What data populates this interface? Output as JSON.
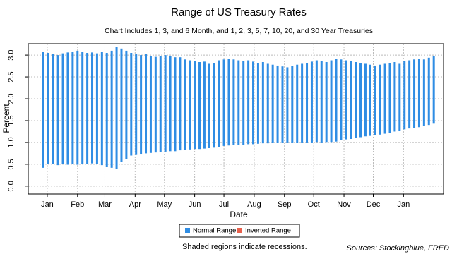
{
  "chart_data": {
    "type": "range-bar",
    "title": "Range of US Treasury Rates",
    "subtitle": "Chart Includes 1, 3, and 6 Month, and 1, 2, 3, 5, 7, 10, 20, and 30 Year Treasuries",
    "xlabel": "Date",
    "ylabel": "Percent",
    "x": [
      -4,
      1,
      6,
      11,
      16,
      21,
      26,
      31,
      36,
      41,
      46,
      51,
      56,
      61,
      66,
      71,
      76,
      81,
      86,
      91,
      96,
      101,
      106,
      111,
      116,
      121,
      126,
      131,
      136,
      141,
      146,
      151,
      156,
      161,
      166,
      171,
      176,
      181,
      186,
      191,
      196,
      201,
      206,
      211,
      216,
      221,
      226,
      231,
      236,
      241,
      246,
      251,
      256,
      261,
      266,
      271,
      276,
      281,
      286,
      291,
      296,
      301,
      306,
      311,
      316,
      321,
      326,
      331,
      336,
      341,
      346,
      351,
      356,
      361,
      366,
      371,
      376,
      381,
      386,
      391,
      396
    ],
    "series": [
      {
        "name": "Normal Range",
        "color": "#2f8de4",
        "low": [
          0.42,
          0.5,
          0.5,
          0.48,
          0.5,
          0.49,
          0.5,
          0.49,
          0.51,
          0.5,
          0.52,
          0.5,
          0.48,
          0.45,
          0.42,
          0.4,
          0.55,
          0.62,
          0.7,
          0.73,
          0.74,
          0.75,
          0.76,
          0.77,
          0.78,
          0.79,
          0.8,
          0.8,
          0.82,
          0.83,
          0.84,
          0.85,
          0.85,
          0.86,
          0.87,
          0.88,
          0.89,
          0.92,
          0.93,
          0.94,
          0.95,
          0.95,
          0.96,
          0.96,
          0.97,
          0.98,
          0.98,
          0.99,
          0.99,
          1.0,
          1.0,
          1.0,
          0.99,
          1.0,
          1.0,
          1.0,
          1.01,
          1.0,
          1.01,
          1.01,
          1.02,
          1.05,
          1.07,
          1.08,
          1.1,
          1.12,
          1.14,
          1.15,
          1.17,
          1.18,
          1.2,
          1.22,
          1.25,
          1.27,
          1.3,
          1.32,
          1.33,
          1.35,
          1.38,
          1.4,
          1.43
        ],
        "high": [
          3.08,
          3.05,
          3.02,
          3.0,
          3.04,
          3.06,
          3.08,
          3.1,
          3.07,
          3.05,
          3.06,
          3.04,
          3.08,
          3.05,
          3.1,
          3.18,
          3.15,
          3.1,
          3.05,
          3.02,
          3.0,
          3.02,
          2.98,
          2.96,
          2.98,
          3.0,
          2.97,
          2.95,
          2.95,
          2.9,
          2.88,
          2.86,
          2.84,
          2.85,
          2.8,
          2.82,
          2.88,
          2.9,
          2.92,
          2.9,
          2.88,
          2.86,
          2.88,
          2.85,
          2.82,
          2.84,
          2.8,
          2.78,
          2.76,
          2.74,
          2.72,
          2.75,
          2.78,
          2.8,
          2.82,
          2.85,
          2.88,
          2.86,
          2.84,
          2.88,
          2.92,
          2.9,
          2.88,
          2.86,
          2.84,
          2.82,
          2.8,
          2.78,
          2.76,
          2.78,
          2.8,
          2.82,
          2.84,
          2.8,
          2.86,
          2.88,
          2.9,
          2.92,
          2.9,
          2.94,
          2.97
        ]
      },
      {
        "name": "Inverted Range",
        "color": "#e8604c"
      }
    ],
    "xlim": [
      -19.5,
      406
    ],
    "xticks": [
      {
        "value": 0,
        "label": "Jan"
      },
      {
        "value": 31,
        "label": "Feb"
      },
      {
        "value": 59,
        "label": "Mar"
      },
      {
        "value": 90,
        "label": "Apr"
      },
      {
        "value": 120,
        "label": "May"
      },
      {
        "value": 151,
        "label": "Jun"
      },
      {
        "value": 181,
        "label": "Jul"
      },
      {
        "value": 212,
        "label": "Aug"
      },
      {
        "value": 243,
        "label": "Sep"
      },
      {
        "value": 273,
        "label": "Oct"
      },
      {
        "value": 304,
        "label": "Nov"
      },
      {
        "value": 334,
        "label": "Dec"
      },
      {
        "value": 365,
        "label": "Jan"
      }
    ],
    "ylim": [
      -0.18,
      3.26
    ],
    "yticks": [
      {
        "value": 0,
        "label": "0.0"
      },
      0.5,
      {
        "value": 1,
        "label": "1.0"
      },
      1.5,
      {
        "value": 2,
        "label": "2.0"
      },
      2.5,
      {
        "value": 3,
        "label": "3.0"
      }
    ],
    "grid": true,
    "legend": "bottom",
    "note": "Shaded regions indicate recessions.",
    "source": "Sources: Stockingblue, FRED"
  }
}
